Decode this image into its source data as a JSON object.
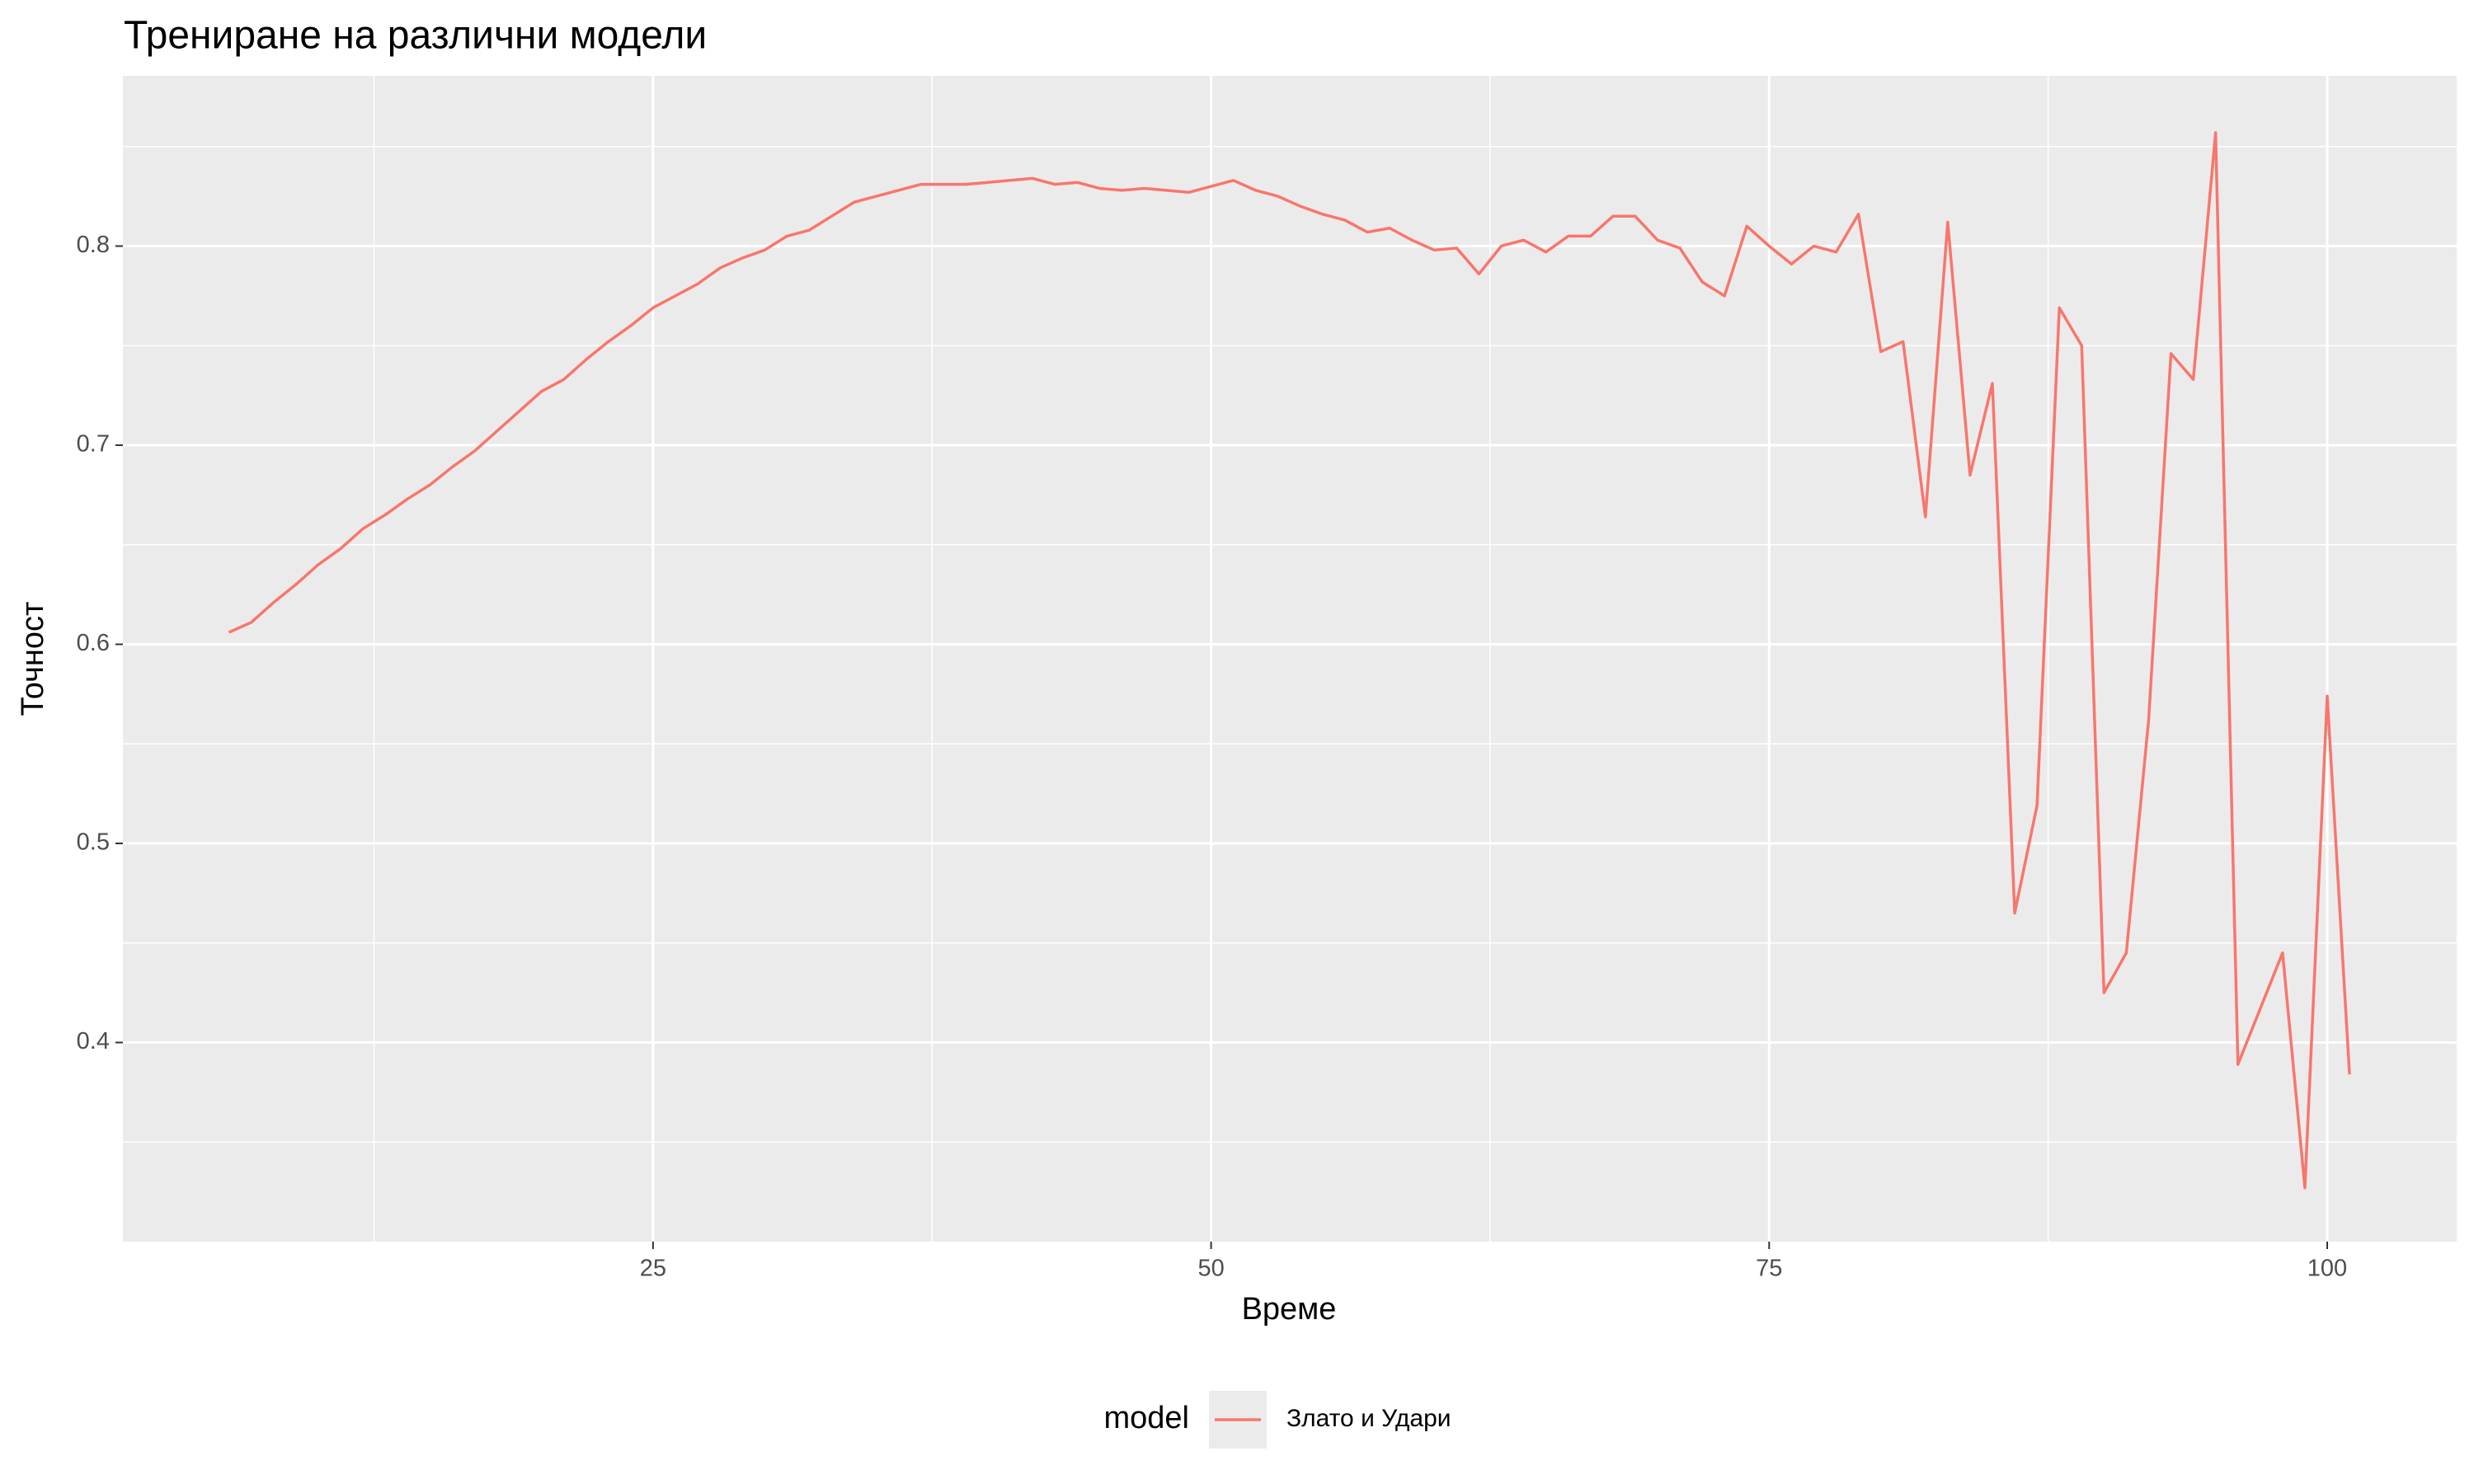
{
  "chart_data": {
    "type": "line",
    "title": "Трениране на различни модели",
    "x_label": "Време",
    "y_label": "Точност",
    "legend_title": "model",
    "legend_position": "bottom",
    "grid": true,
    "xlim": [
      1.25,
      105.8
    ],
    "ylim": [
      0.3,
      0.8855
    ],
    "xticks": [
      25,
      50,
      75,
      100
    ],
    "yticks": [
      0.4,
      0.5,
      0.6,
      0.7,
      0.8
    ],
    "x": [
      6,
      7,
      8,
      9,
      10,
      11,
      12,
      13,
      14,
      15,
      16,
      17,
      18,
      19,
      20,
      21,
      22,
      23,
      24,
      25,
      26,
      27,
      28,
      29,
      30,
      31,
      32,
      33,
      34,
      35,
      36,
      37,
      38,
      39,
      40,
      41,
      42,
      43,
      44,
      45,
      46,
      47,
      48,
      49,
      50,
      51,
      52,
      53,
      54,
      55,
      56,
      57,
      58,
      59,
      60,
      61,
      62,
      63,
      64,
      65,
      66,
      67,
      68,
      69,
      70,
      71,
      72,
      73,
      74,
      75,
      76,
      77,
      78,
      79,
      80,
      81,
      82,
      83,
      84,
      85,
      86,
      87,
      88,
      89,
      90,
      91,
      92,
      93,
      94,
      95,
      96,
      97,
      98,
      99,
      100,
      101
    ],
    "series": [
      {
        "name": "Злато и Удари",
        "color": "#f8766d",
        "values": [
          0.606,
          0.611,
          0.621,
          0.63,
          0.64,
          0.648,
          0.658,
          0.665,
          0.673,
          0.68,
          0.689,
          0.697,
          0.707,
          0.717,
          0.727,
          0.733,
          0.743,
          0.752,
          0.76,
          0.769,
          0.775,
          0.781,
          0.789,
          0.794,
          0.798,
          0.805,
          0.808,
          0.815,
          0.822,
          0.825,
          0.828,
          0.831,
          0.831,
          0.831,
          0.832,
          0.833,
          0.834,
          0.831,
          0.832,
          0.829,
          0.828,
          0.829,
          0.828,
          0.827,
          0.83,
          0.833,
          0.828,
          0.825,
          0.82,
          0.816,
          0.813,
          0.807,
          0.809,
          0.803,
          0.798,
          0.799,
          0.786,
          0.8,
          0.803,
          0.797,
          0.805,
          0.805,
          0.815,
          0.815,
          0.803,
          0.799,
          0.782,
          0.775,
          0.81,
          0.8,
          0.791,
          0.8,
          0.797,
          0.816,
          0.747,
          0.752,
          0.664,
          0.812,
          0.685,
          0.731,
          0.465,
          0.519,
          0.769,
          0.75,
          0.425,
          0.445,
          0.562,
          0.746,
          0.733,
          0.857,
          0.389,
          0.417,
          0.445,
          0.327,
          0.574,
          0.384
        ]
      }
    ]
  }
}
